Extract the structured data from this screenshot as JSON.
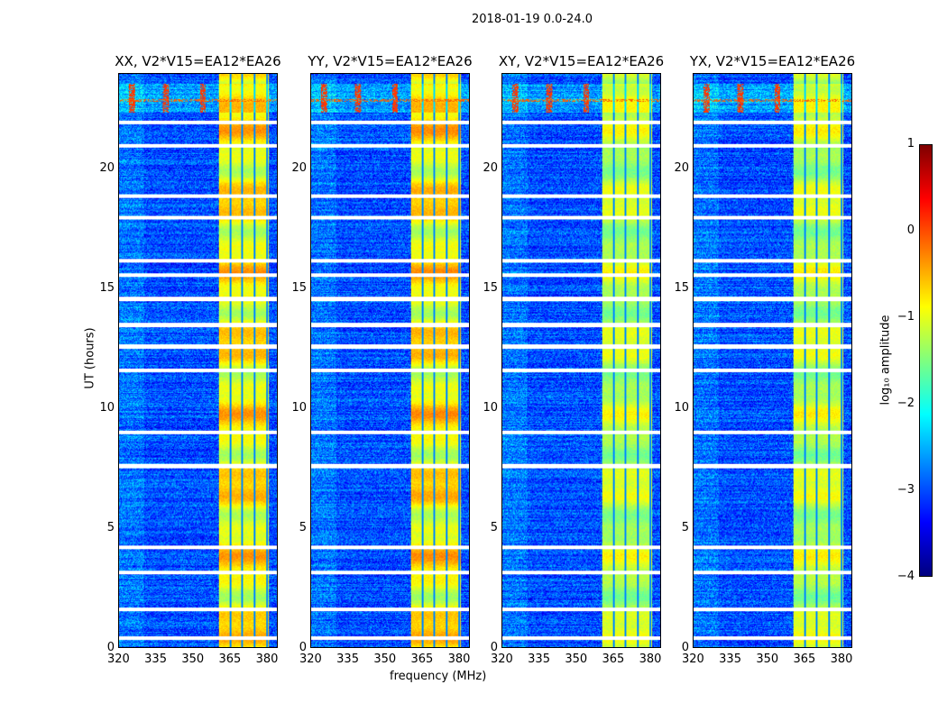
{
  "suptitle": "2018-01-19 0.0-24.0",
  "chart_data": {
    "type": "heatmap",
    "colormap": "jet",
    "xlabel": "frequency (MHz)",
    "ylabel": "UT (hours)",
    "xlim": [
      320,
      384.5
    ],
    "ylim": [
      0,
      24
    ],
    "xticks": [
      "320",
      "335",
      "350",
      "365",
      "380"
    ],
    "xtick_values": [
      320,
      335,
      350,
      365,
      380
    ],
    "yticks": [
      "0",
      "5",
      "10",
      "15",
      "20"
    ],
    "ytick_values": [
      0,
      5,
      10,
      15,
      20
    ],
    "panels": [
      {
        "title": "XX, V2*V15=EA12*EA26",
        "band_strength": 1.0
      },
      {
        "title": "YY, V2*V15=EA12*EA26",
        "band_strength": 1.05
      },
      {
        "title": "XY, V2*V15=EA12*EA26",
        "band_strength": 0.75
      },
      {
        "title": "YX, V2*V15=EA12*EA26",
        "band_strength": 0.8
      }
    ],
    "rfi_band_mhz": [
      360.7,
      381
    ],
    "band_gaps_mhz": [
      365.5,
      370,
      375.3,
      380.4
    ],
    "flagged_hours": [
      0.4,
      1.6,
      3.15,
      4.2,
      7.6,
      9.0,
      11.6,
      12.6,
      13.5,
      14.6,
      15.6,
      16.2,
      18.0,
      18.9,
      21.0,
      22.0
    ],
    "baseline_log_amp": -3,
    "colorbar": {
      "label": "log₁₀ amplitude",
      "ticks": [
        "1",
        "0",
        "−1",
        "−2",
        "−3",
        "−4"
      ],
      "tick_values": [
        1,
        0,
        -1,
        -2,
        -3,
        -4
      ],
      "range": [
        -4,
        1
      ]
    }
  }
}
